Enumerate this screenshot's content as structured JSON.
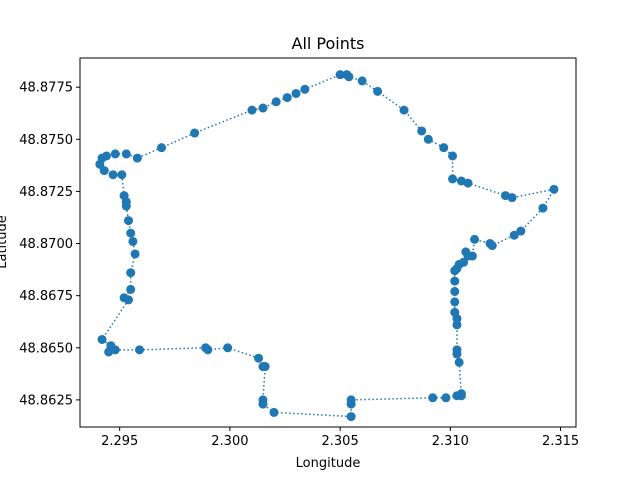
{
  "chart_data": {
    "type": "scatter",
    "title": "All Points",
    "xlabel": "Longitude",
    "ylabel": "Latitude",
    "xlim": [
      2.2932,
      2.3157
    ],
    "ylim": [
      48.8612,
      48.8789
    ],
    "xticks": [
      {
        "value": 2.295,
        "label": "2.295"
      },
      {
        "value": 2.3,
        "label": "2.300"
      },
      {
        "value": 2.305,
        "label": "2.305"
      },
      {
        "value": 2.31,
        "label": "2.310"
      },
      {
        "value": 2.315,
        "label": "2.315"
      }
    ],
    "yticks": [
      {
        "value": 48.8625,
        "label": "48.8625"
      },
      {
        "value": 48.865,
        "label": "48.8650"
      },
      {
        "value": 48.8675,
        "label": "48.8675"
      },
      {
        "value": 48.87,
        "label": "48.8700"
      },
      {
        "value": 48.8725,
        "label": "48.8725"
      },
      {
        "value": 48.875,
        "label": "48.8750"
      },
      {
        "value": 48.8775,
        "label": "48.8775"
      }
    ],
    "grid": false,
    "color": "#1f77b4",
    "line_style": "dotted",
    "series": [
      {
        "points": [
          [
            2.3053,
            48.8781
          ],
          [
            2.305,
            48.8781
          ],
          [
            2.3034,
            48.8774
          ],
          [
            2.303,
            48.8772
          ],
          [
            2.3026,
            48.877
          ],
          [
            2.3021,
            48.8768
          ],
          [
            2.3015,
            48.8765
          ],
          [
            2.301,
            48.8764
          ],
          [
            2.2984,
            48.8753
          ],
          [
            2.2969,
            48.8746
          ],
          [
            2.2958,
            48.8741
          ],
          [
            2.2953,
            48.8743
          ],
          [
            2.2948,
            48.8743
          ],
          [
            2.2944,
            48.8742
          ],
          [
            2.2942,
            48.8741
          ],
          [
            2.2941,
            48.8738
          ],
          [
            2.2943,
            48.8735
          ],
          [
            2.2947,
            48.8733
          ],
          [
            2.2951,
            48.8733
          ],
          [
            2.2952,
            48.8723
          ],
          [
            2.2953,
            48.872
          ],
          [
            2.2953,
            48.8718
          ],
          [
            2.2954,
            48.8711
          ],
          [
            2.2955,
            48.8705
          ],
          [
            2.2956,
            48.8701
          ],
          [
            2.2957,
            48.8695
          ],
          [
            2.2955,
            48.8686
          ],
          [
            2.2955,
            48.8678
          ],
          [
            2.2952,
            48.8674
          ],
          [
            2.2954,
            48.8673
          ],
          [
            2.2942,
            48.8654
          ],
          [
            2.2946,
            48.8651
          ],
          [
            2.2945,
            48.8648
          ],
          [
            2.2948,
            48.8649
          ],
          [
            2.2959,
            48.8649
          ],
          [
            2.2989,
            48.865
          ],
          [
            2.299,
            48.8649
          ],
          [
            2.2999,
            48.865
          ],
          [
            2.3013,
            48.8645
          ],
          [
            2.3015,
            48.8641
          ],
          [
            2.3016,
            48.8641
          ],
          [
            2.3015,
            48.8625
          ],
          [
            2.3015,
            48.8623
          ],
          [
            2.302,
            48.8619
          ],
          [
            2.3055,
            48.8617
          ],
          [
            2.3055,
            48.8623
          ],
          [
            2.3055,
            48.8625
          ],
          [
            2.3092,
            48.8626
          ],
          [
            2.3098,
            48.8626
          ],
          [
            2.3103,
            48.8627
          ],
          [
            2.3105,
            48.8628
          ],
          [
            2.3105,
            48.8627
          ],
          [
            2.3104,
            48.8643
          ],
          [
            2.3103,
            48.8647
          ],
          [
            2.3103,
            48.8649
          ],
          [
            2.3103,
            48.8661
          ],
          [
            2.3103,
            48.8664
          ],
          [
            2.3102,
            48.8667
          ],
          [
            2.3102,
            48.8672
          ],
          [
            2.3102,
            48.8677
          ],
          [
            2.3102,
            48.8682
          ],
          [
            2.3102,
            48.8687
          ],
          [
            2.3103,
            48.8688
          ],
          [
            2.3104,
            48.869
          ],
          [
            2.3106,
            48.8691
          ],
          [
            2.3107,
            48.8696
          ],
          [
            2.3108,
            48.8694
          ],
          [
            2.311,
            48.8694
          ],
          [
            2.3111,
            48.8702
          ],
          [
            2.3118,
            48.87
          ],
          [
            2.3119,
            48.8699
          ],
          [
            2.3129,
            48.8704
          ],
          [
            2.3132,
            48.8706
          ],
          [
            2.3142,
            48.8717
          ],
          [
            2.3147,
            48.8726
          ],
          [
            2.3128,
            48.8722
          ],
          [
            2.3125,
            48.8723
          ],
          [
            2.3108,
            48.8729
          ],
          [
            2.3105,
            48.873
          ],
          [
            2.3101,
            48.8731
          ],
          [
            2.3101,
            48.8742
          ],
          [
            2.3097,
            48.8746
          ],
          [
            2.309,
            48.875
          ],
          [
            2.3087,
            48.8754
          ],
          [
            2.3079,
            48.8764
          ],
          [
            2.3067,
            48.8773
          ],
          [
            2.306,
            48.8778
          ],
          [
            2.3054,
            48.878
          ]
        ]
      }
    ]
  }
}
